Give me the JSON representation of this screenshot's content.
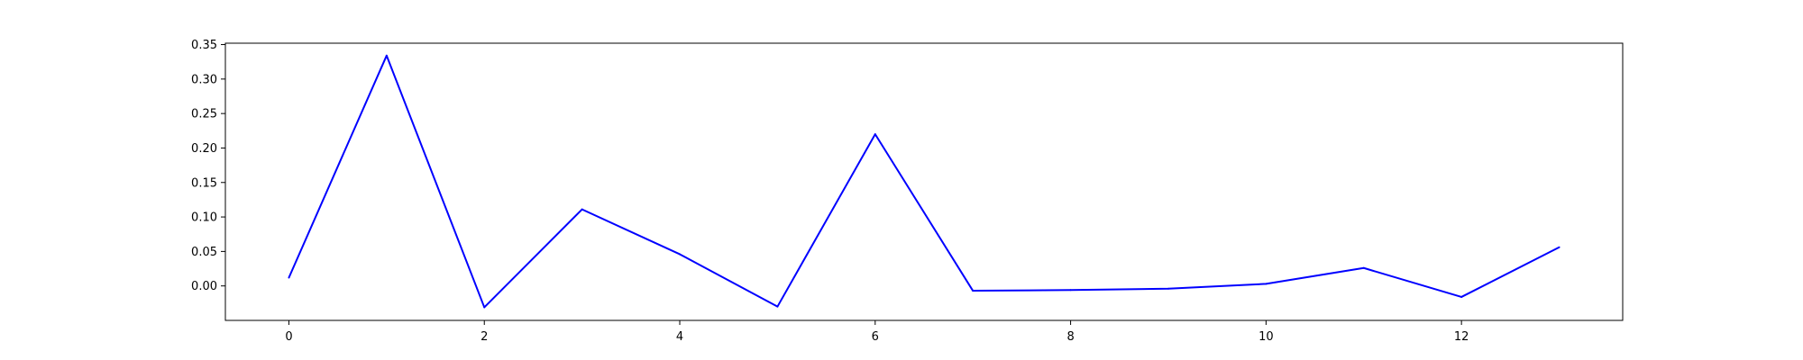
{
  "chart_data": {
    "type": "line",
    "title": "",
    "xlabel": "",
    "ylabel": "",
    "xlim": [
      -0.65,
      13.65
    ],
    "ylim": [
      -0.05,
      0.352
    ],
    "x_ticks": [
      0,
      2,
      4,
      6,
      8,
      10,
      12
    ],
    "x_tick_labels": [
      "0",
      "2",
      "4",
      "6",
      "8",
      "10",
      "12"
    ],
    "y_ticks": [
      0.0,
      0.05,
      0.1,
      0.15,
      0.2,
      0.25,
      0.3,
      0.35
    ],
    "y_tick_labels": [
      "0.00",
      "0.05",
      "0.10",
      "0.15",
      "0.20",
      "0.25",
      "0.30",
      "0.35"
    ],
    "grid": false,
    "legend": "none",
    "series": [
      {
        "color": "#0000ff",
        "x": [
          0,
          1,
          2,
          3,
          4,
          5,
          6,
          7,
          8,
          9,
          10,
          11,
          12,
          13
        ],
        "values": [
          0.012,
          0.334,
          -0.031,
          0.111,
          0.046,
          -0.03,
          0.22,
          -0.007,
          -0.006,
          -0.004,
          0.003,
          0.026,
          -0.016,
          0.056
        ]
      }
    ]
  }
}
